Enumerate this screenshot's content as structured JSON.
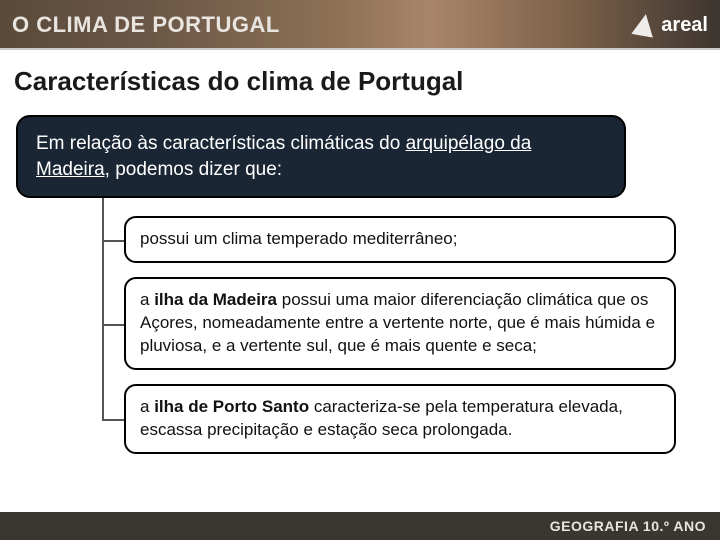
{
  "header": {
    "title": "O CLIMA DE PORTUGAL",
    "brand": "areal",
    "colors": {
      "gradient_start": "#5a4a3a",
      "gradient_end": "#3d3530",
      "text": "#e8e5e0"
    }
  },
  "heading": "Características do clima de Portugal",
  "intro": {
    "prefix": "Em relação às características climáticas do ",
    "underlined": "arquipélago da Madeira,",
    "suffix": " podemos dizer que:",
    "background": "#1b2634",
    "text_color": "#ffffff",
    "border_color": "#000000",
    "border_radius": 14,
    "fontsize": 19
  },
  "items": [
    {
      "html": "possui um clima temperado mediterrâneo;"
    },
    {
      "html": "a <b>ilha da Madeira</b> possui uma maior diferenciação climática que os Açores, nomeadamente entre a vertente norte, que é mais húmida e pluviosa, e a vertente sul, que é mais quente e seca;"
    },
    {
      "html": "a <b>ilha de Porto Santo</b> caracteriza-se pela temperatura elevada, escassa precipitação e estação seca prolongada."
    }
  ],
  "tree_style": {
    "line_color": "#555555",
    "box_border": "#000000",
    "box_bg": "#ffffff",
    "box_radius": 12,
    "fontsize": 17
  },
  "footer": {
    "label": "GEOGRAFIA 10.º ANO",
    "background": "#3a3632",
    "text_color": "#e8e5e0"
  }
}
